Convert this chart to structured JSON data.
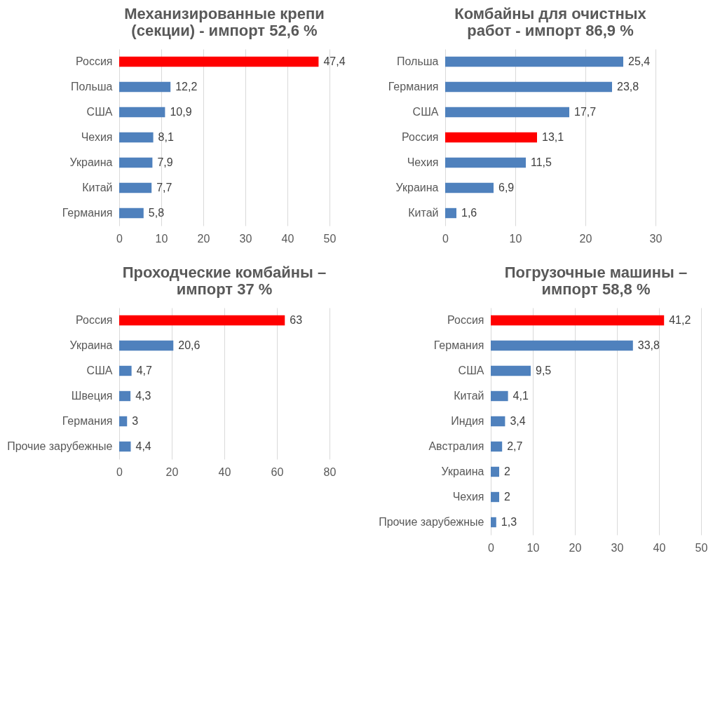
{
  "chart_data": [
    {
      "type": "bar",
      "orientation": "horizontal",
      "title": "Механизированные крепи (секции) - импорт 52,6 %",
      "categories": [
        "Россия",
        "Польша",
        "США",
        "Чехия",
        "Украина",
        "Китай",
        "Германия"
      ],
      "values": [
        47.4,
        12.2,
        10.9,
        8.1,
        7.9,
        7.7,
        5.8
      ],
      "value_labels": [
        "47,4",
        "12,2",
        "10,9",
        "8,1",
        "7,9",
        "7,7",
        "5,8"
      ],
      "colors": [
        "#ff0000",
        "#4f81bd",
        "#4f81bd",
        "#4f81bd",
        "#4f81bd",
        "#4f81bd",
        "#4f81bd"
      ],
      "xlim": [
        0,
        50
      ],
      "xticks": [
        0,
        10,
        20,
        30,
        40,
        50
      ],
      "grid": "x"
    },
    {
      "type": "bar",
      "orientation": "horizontal",
      "title": "Комбайны для очистных работ - импорт 86,9 %",
      "categories": [
        "Польша",
        "Германия",
        "США",
        "Россия",
        "Чехия",
        "Украина",
        "Китай"
      ],
      "values": [
        25.4,
        23.8,
        17.7,
        13.1,
        11.5,
        6.9,
        1.6
      ],
      "value_labels": [
        "25,4",
        "23,8",
        "17,7",
        "13,1",
        "11,5",
        "6,9",
        "1,6"
      ],
      "colors": [
        "#4f81bd",
        "#4f81bd",
        "#4f81bd",
        "#ff0000",
        "#4f81bd",
        "#4f81bd",
        "#4f81bd"
      ],
      "xlim": [
        0,
        30
      ],
      "xticks": [
        0,
        10,
        20,
        30
      ],
      "grid": "x"
    },
    {
      "type": "bar",
      "orientation": "horizontal",
      "title": "Проходческие комбайны – импорт 37 %",
      "categories": [
        "Россия",
        "Украина",
        "США",
        "Швеция",
        "Германия",
        "Прочие зарубежные"
      ],
      "values": [
        63,
        20.6,
        4.7,
        4.3,
        3,
        4.4
      ],
      "value_labels": [
        "63",
        "20,6",
        "4,7",
        "4,3",
        "3",
        "4,4"
      ],
      "colors": [
        "#ff0000",
        "#4f81bd",
        "#4f81bd",
        "#4f81bd",
        "#4f81bd",
        "#4f81bd"
      ],
      "xlim": [
        0,
        80
      ],
      "xticks": [
        0,
        20,
        40,
        60,
        80
      ],
      "grid": "x"
    },
    {
      "type": "bar",
      "orientation": "horizontal",
      "title": "Погрузочные машины – импорт 58,8 %",
      "categories": [
        "Россия",
        "Германия",
        "США",
        "Китай",
        "Индия",
        "Австралия",
        "Украина",
        "Чехия",
        "Прочие зарубежные"
      ],
      "values": [
        41.2,
        33.8,
        9.5,
        4.1,
        3.4,
        2.7,
        2,
        2,
        1.3
      ],
      "value_labels": [
        "41,2",
        "33,8",
        "9,5",
        "4,1",
        "3,4",
        "2,7",
        "2",
        "2",
        "1,3"
      ],
      "colors": [
        "#ff0000",
        "#4f81bd",
        "#4f81bd",
        "#4f81bd",
        "#4f81bd",
        "#4f81bd",
        "#4f81bd",
        "#4f81bd",
        "#4f81bd"
      ],
      "xlim": [
        0,
        50
      ],
      "xticks": [
        0,
        10,
        20,
        30,
        40,
        50
      ],
      "grid": "x"
    }
  ]
}
